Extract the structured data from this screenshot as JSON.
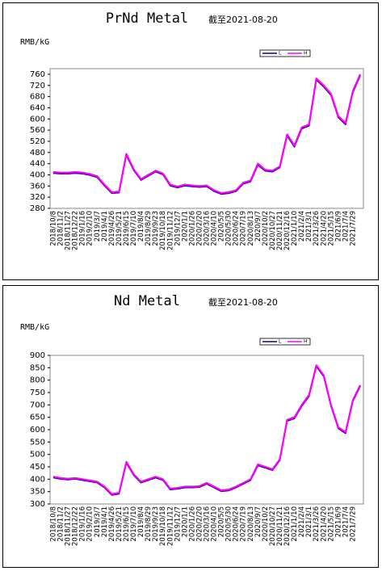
{
  "chart_data": [
    {
      "type": "line",
      "title": "PrNd Metal",
      "subtitle": "截至2021-08-20",
      "y_label": "RMB/kG",
      "categories": [
        "2018/10/8",
        "2018/11/2",
        "2018/11/27",
        "2018/12/22",
        "2019/1/16",
        "2019/2/10",
        "2019/3/7",
        "2019/4/1",
        "2019/4/26",
        "2019/5/21",
        "2019/6/15",
        "2019/7/10",
        "2019/8/4",
        "2019/8/29",
        "2019/9/23",
        "2019/10/18",
        "2019/11/12",
        "2019/12/7",
        "2020/1/1",
        "2020/1/26",
        "2020/2/20",
        "2020/3/16",
        "2020/4/10",
        "2020/5/5",
        "2020/5/30",
        "2020/6/24",
        "2020/7/19",
        "2020/8/13",
        "2020/9/7",
        "2020/10/2",
        "2020/10/27",
        "2020/11/21",
        "2020/12/16",
        "2021/1/10",
        "2021/2/4",
        "2021/3/1",
        "2021/3/26",
        "2021/4/20",
        "2021/5/15",
        "2021/6/9",
        "2021/7/4",
        "2021/7/29",
        null
      ],
      "series": [
        {
          "name": "L",
          "color": "#00008b",
          "values": [
            406,
            404,
            404,
            406,
            404,
            399,
            391,
            361,
            334,
            336,
            470,
            416,
            381,
            396,
            411,
            401,
            361,
            354,
            361,
            358,
            356,
            358,
            341,
            331,
            334,
            341,
            368,
            376,
            435,
            414,
            411,
            426,
            540,
            500,
            565,
            575,
            740,
            715,
            685,
            605,
            580,
            695,
            755
          ]
        },
        {
          "name": "H",
          "color": "#ff00ff",
          "values": [
            410,
            408,
            408,
            410,
            408,
            403,
            395,
            365,
            338,
            340,
            475,
            420,
            385,
            400,
            415,
            405,
            365,
            358,
            365,
            362,
            360,
            362,
            345,
            335,
            338,
            345,
            372,
            380,
            440,
            418,
            415,
            430,
            545,
            505,
            570,
            580,
            745,
            720,
            690,
            610,
            585,
            700,
            760
          ]
        }
      ],
      "ylim": [
        280,
        780
      ],
      "yticks": [
        280,
        320,
        360,
        400,
        440,
        480,
        520,
        560,
        600,
        640,
        680,
        720,
        760
      ],
      "grid": false,
      "legend": "top-right"
    },
    {
      "type": "line",
      "title": "Nd Metal",
      "subtitle": "截至2021-08-20",
      "y_label": "RMB/kG",
      "categories": [
        "2018/10/8",
        "2018/11/2",
        "2018/11/27",
        "2018/12/22",
        "2019/1/16",
        "2019/2/10",
        "2019/3/7",
        "2019/4/1",
        "2019/4/26",
        "2019/5/21",
        "2019/6/15",
        "2019/7/10",
        "2019/8/4",
        "2019/8/29",
        "2019/9/23",
        "2019/10/18",
        "2019/11/12",
        "2019/12/7",
        "2020/1/1",
        "2020/1/26",
        "2020/2/20",
        "2020/3/16",
        "2020/4/10",
        "2020/5/5",
        "2020/5/30",
        "2020/6/24",
        "2020/7/19",
        "2020/8/13",
        "2020/9/7",
        "2020/10/2",
        "2020/10/27",
        "2020/11/21",
        "2020/12/16",
        "2021/1/10",
        "2021/2/4",
        "2021/3/1",
        "2021/3/26",
        "2021/4/20",
        "2021/5/15",
        "2021/6/9",
        "2021/7/4",
        "2021/7/29",
        null
      ],
      "series": [
        {
          "name": "L",
          "color": "#00008b",
          "values": [
            406,
            401,
            398,
            401,
            396,
            391,
            386,
            366,
            336,
            341,
            465,
            416,
            386,
            396,
            406,
            396,
            358,
            361,
            366,
            366,
            368,
            381,
            366,
            351,
            354,
            366,
            381,
            396,
            455,
            446,
            436,
            476,
            635,
            645,
            695,
            735,
            855,
            815,
            695,
            605,
            585,
            715,
            775
          ]
        },
        {
          "name": "H",
          "color": "#ff00ff",
          "values": [
            410,
            405,
            402,
            405,
            400,
            395,
            390,
            370,
            340,
            345,
            470,
            420,
            390,
            400,
            410,
            400,
            362,
            365,
            370,
            370,
            372,
            385,
            370,
            355,
            358,
            370,
            385,
            400,
            460,
            450,
            440,
            480,
            640,
            650,
            700,
            740,
            860,
            820,
            700,
            610,
            590,
            720,
            780
          ]
        }
      ],
      "ylim": [
        300,
        900
      ],
      "yticks": [
        300,
        350,
        400,
        450,
        500,
        550,
        600,
        650,
        700,
        750,
        800,
        850,
        900
      ],
      "grid": false,
      "legend": "top-right"
    }
  ]
}
